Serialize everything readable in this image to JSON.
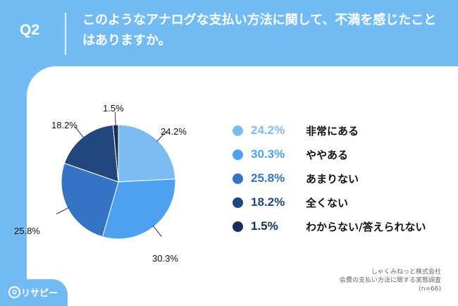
{
  "question": {
    "label": "Q2",
    "text": "このようなアナログな支払い方法に関して、不満を感じたことはありますか。"
  },
  "colors": {
    "background": "#72bbf3",
    "panel": "#ffffff"
  },
  "chart_data": {
    "type": "pie",
    "categories": [
      "非常にある",
      "ややある",
      "あまりない",
      "全くない",
      "わからない/答えられない"
    ],
    "values": [
      24.2,
      30.3,
      25.8,
      18.2,
      1.5
    ],
    "labels": [
      "24.2%",
      "30.3%",
      "25.8%",
      "18.2%",
      "1.5%"
    ],
    "colors": [
      "#7dbcf2",
      "#4ea0f1",
      "#3574c4",
      "#22477e",
      "#162e53"
    ],
    "legend_placement": "right"
  },
  "source": {
    "line1": "しゃくみねっと株式会社",
    "line2": "会費の支払い方法に関する実態調査",
    "line3": "(n=66)"
  },
  "brand": {
    "icon": "Q",
    "name": "リサピー"
  }
}
